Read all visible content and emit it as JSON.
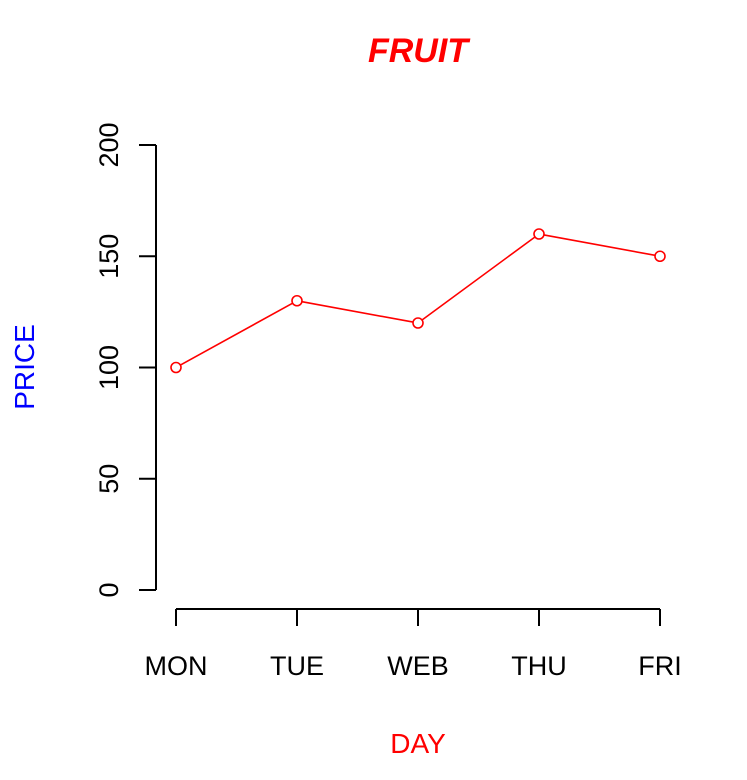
{
  "chart_data": {
    "type": "line",
    "title": "FRUIT",
    "xlabel": "DAY",
    "ylabel": "PRICE",
    "categories": [
      "MON",
      "TUE",
      "WEB",
      "THU",
      "FRI"
    ],
    "series": [
      {
        "values": [
          100,
          130,
          120,
          160,
          150
        ]
      }
    ],
    "ylim": [
      0,
      200
    ],
    "yticks": [
      0,
      50,
      100,
      150,
      200
    ],
    "grid": false,
    "markers": "open-circle",
    "colors": {
      "title": "#ff0000",
      "xlabel": "#ff0000",
      "ylabel": "#0000ff",
      "series": "#ff0000",
      "axis": "#000000"
    }
  }
}
